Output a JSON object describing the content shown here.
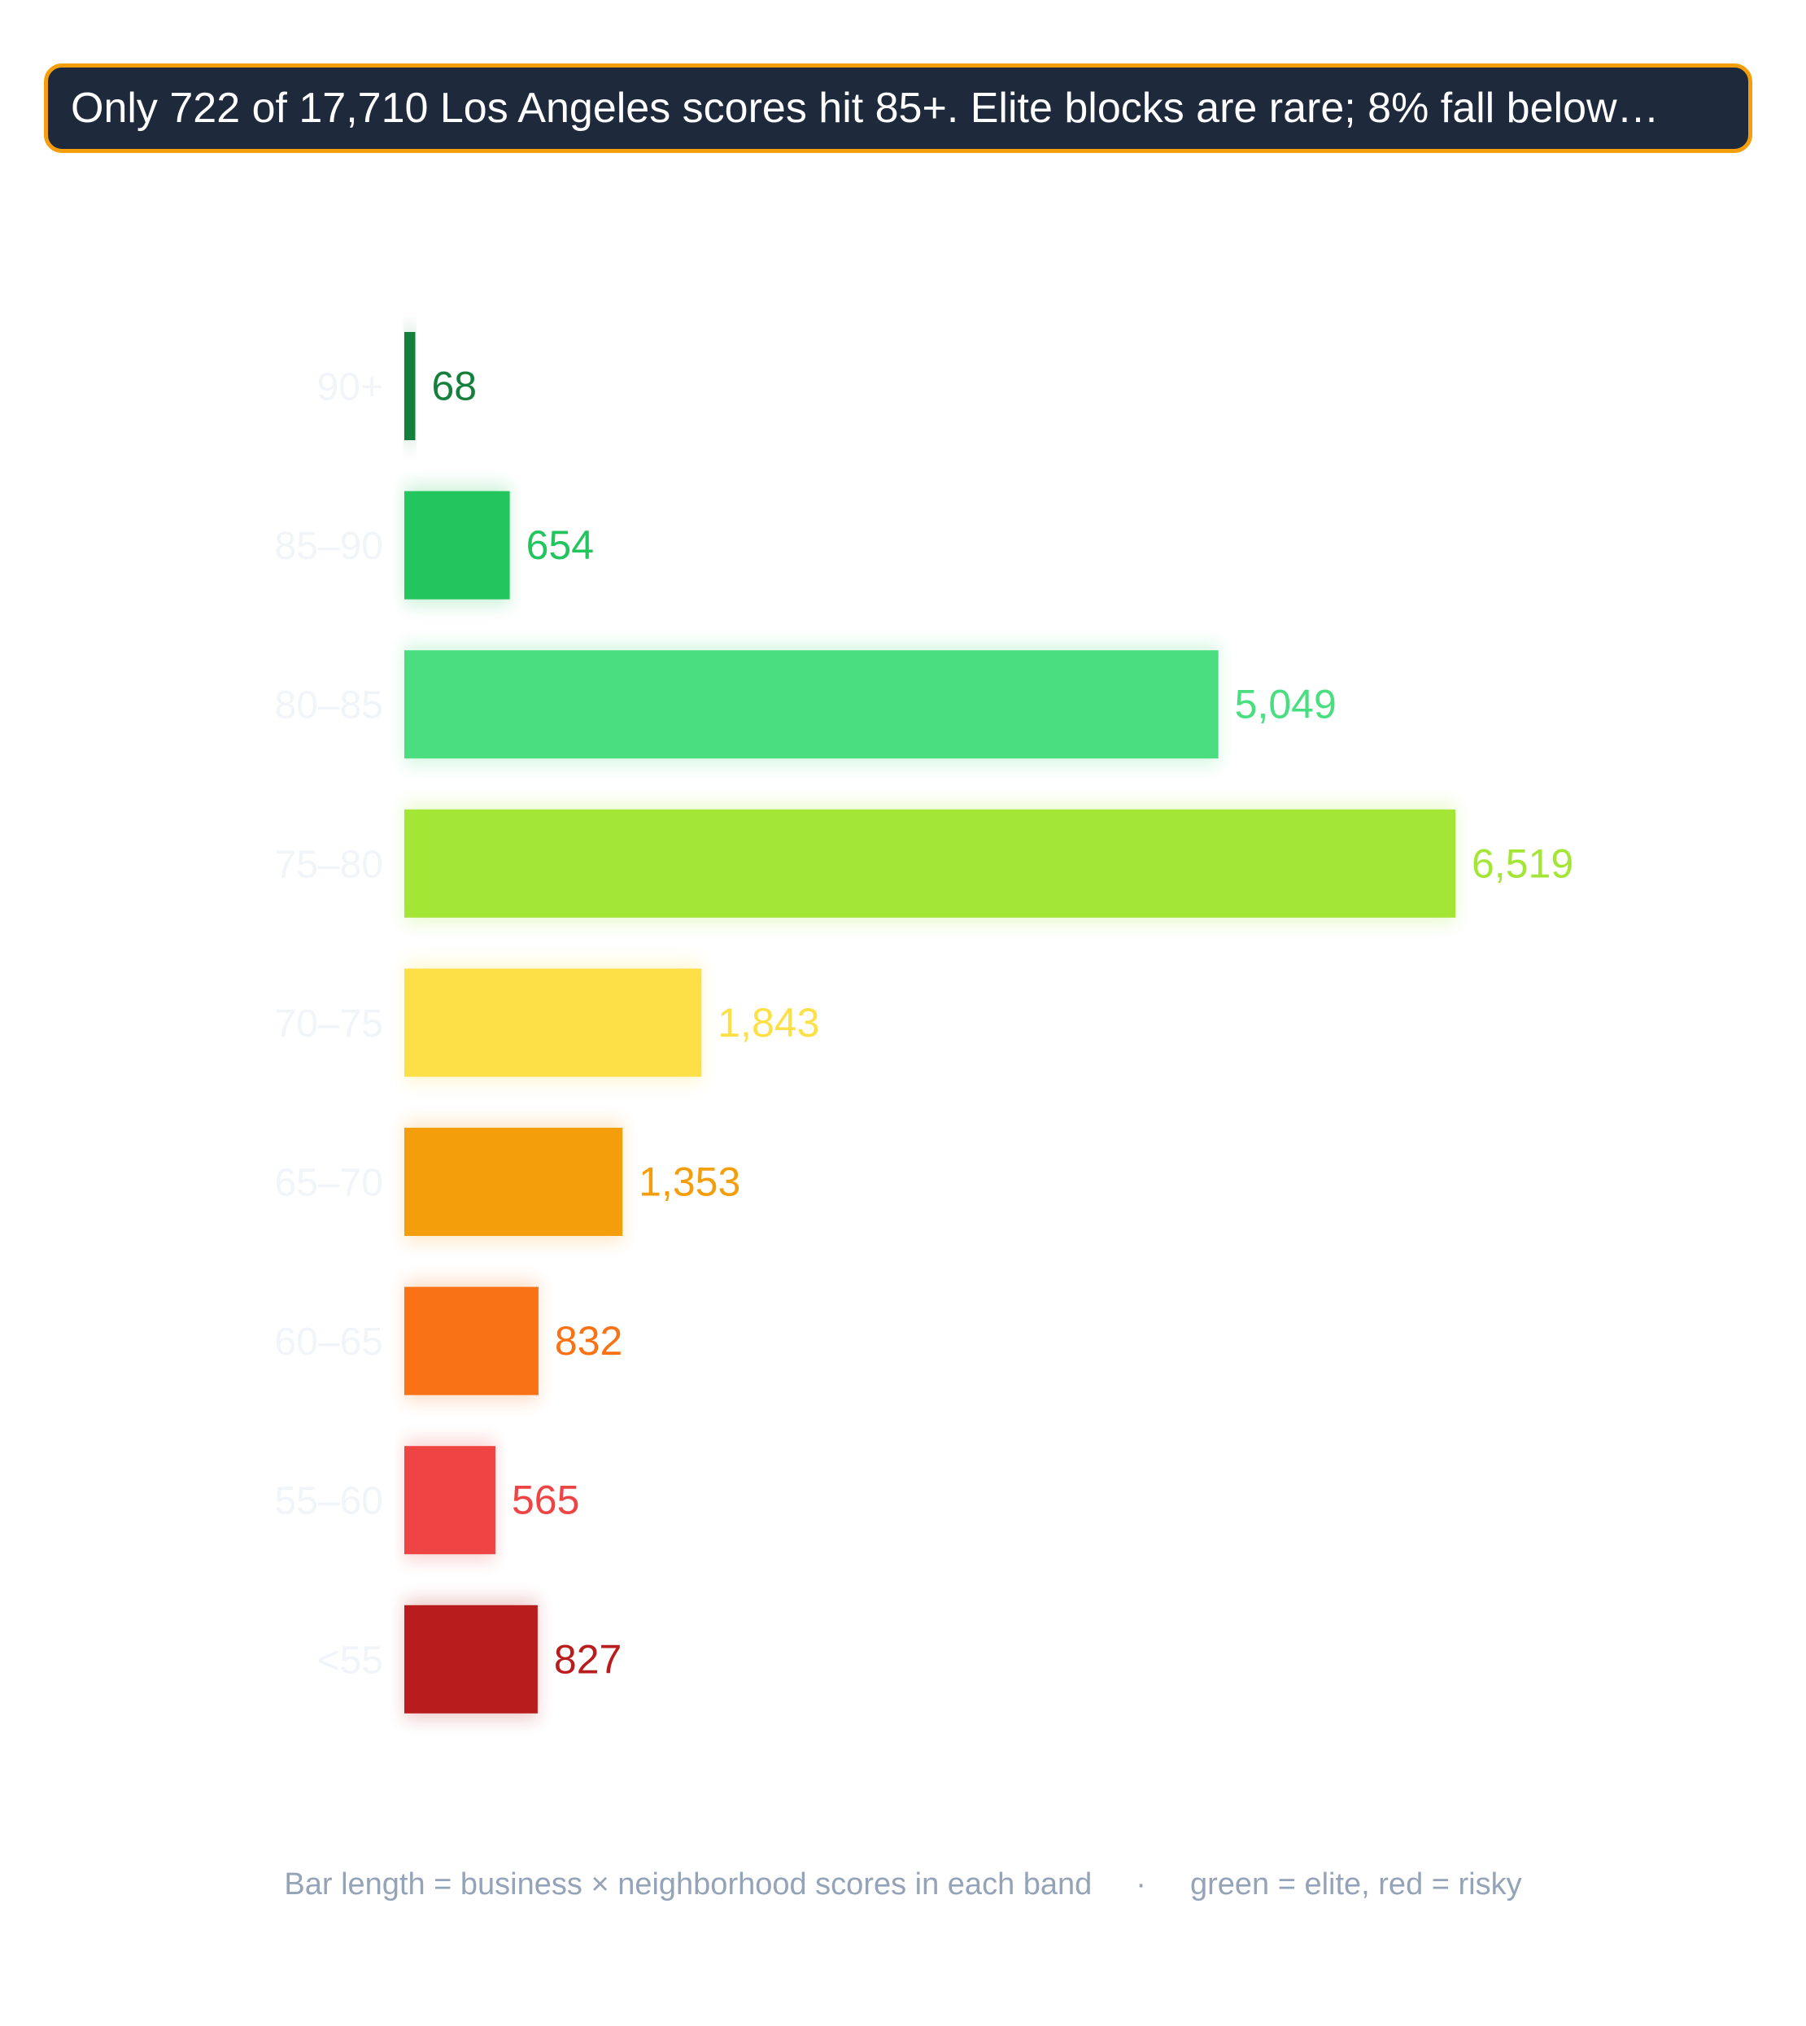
{
  "headline": "Only 722 of 17,710 Los Angeles scores hit 85+. Elite blocks are rare; 8% fall below…",
  "footer": {
    "left": "Bar length = business × neighborhood scores in each band",
    "separator": "·",
    "right": "green = elite, red = risky"
  },
  "chart_data": {
    "type": "bar",
    "orientation": "horizontal",
    "categories": [
      "90+",
      "85–90",
      "80–85",
      "75–80",
      "70–75",
      "65–70",
      "60–65",
      "55–60",
      "<55"
    ],
    "values": [
      68,
      654,
      5049,
      6519,
      1843,
      1353,
      832,
      565,
      827
    ],
    "value_labels": [
      "68",
      "654",
      "5,049",
      "6,519",
      "1,843",
      "1,353",
      "832",
      "565",
      "827"
    ],
    "colors": [
      "#15803d",
      "#22c55e",
      "#4ade80",
      "#a3e635",
      "#fde047",
      "#f59e0b",
      "#f97316",
      "#ef4444",
      "#b91c1c"
    ],
    "xlim": [
      0,
      6519
    ],
    "grid": false,
    "legend": "none"
  }
}
